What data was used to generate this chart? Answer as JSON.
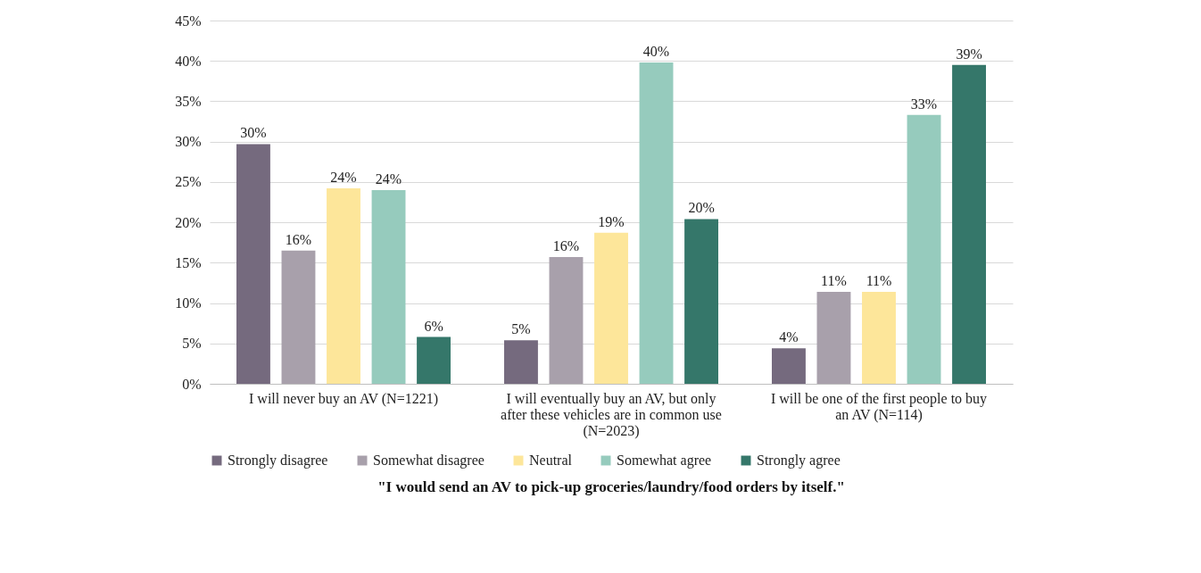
{
  "chart_data": {
    "type": "bar",
    "title": "\"I would send an AV to pick-up groceries/laundry/food orders by itself.\"",
    "categories": [
      "I will never buy an AV (N=1221)",
      "I will eventually buy an AV, but only after these vehicles are in common use (N=2023)",
      "I will be one of the first people to buy an AV (N=114)"
    ],
    "series": [
      {
        "name": "Strongly disagree",
        "color": "#756a7e",
        "values": [
          29.7,
          5.4,
          4.4
        ],
        "value_labels": [
          "30%",
          "5%",
          "4%"
        ]
      },
      {
        "name": "Somewhat disagree",
        "color": "#a8a0ab",
        "values": [
          16.5,
          15.7,
          11.4
        ],
        "value_labels": [
          "16%",
          "16%",
          "11%"
        ]
      },
      {
        "name": "Neutral",
        "color": "#fde69a",
        "values": [
          24.2,
          18.7,
          11.4
        ],
        "value_labels": [
          "24%",
          "19%",
          "11%"
        ]
      },
      {
        "name": "Somewhat agree",
        "color": "#96cbbd",
        "values": [
          24.0,
          39.8,
          33.3
        ],
        "value_labels": [
          "24%",
          "40%",
          "33%"
        ]
      },
      {
        "name": "Strongly agree",
        "color": "#35776a",
        "values": [
          5.8,
          20.4,
          39.5
        ],
        "value_labels": [
          "6%",
          "20%",
          "39%"
        ]
      }
    ],
    "ylim": [
      0,
      45
    ],
    "yticks": [
      {
        "value": 0,
        "label": "0%"
      },
      {
        "value": 5,
        "label": "5%"
      },
      {
        "value": 10,
        "label": "10%"
      },
      {
        "value": 15,
        "label": "15%"
      },
      {
        "value": 20,
        "label": "20%"
      },
      {
        "value": 25,
        "label": "25%"
      },
      {
        "value": 30,
        "label": "30%"
      },
      {
        "value": 35,
        "label": "35%"
      },
      {
        "value": 40,
        "label": "40%"
      },
      {
        "value": 45,
        "label": "45%"
      }
    ],
    "grid": "y",
    "legend": "bottom"
  }
}
